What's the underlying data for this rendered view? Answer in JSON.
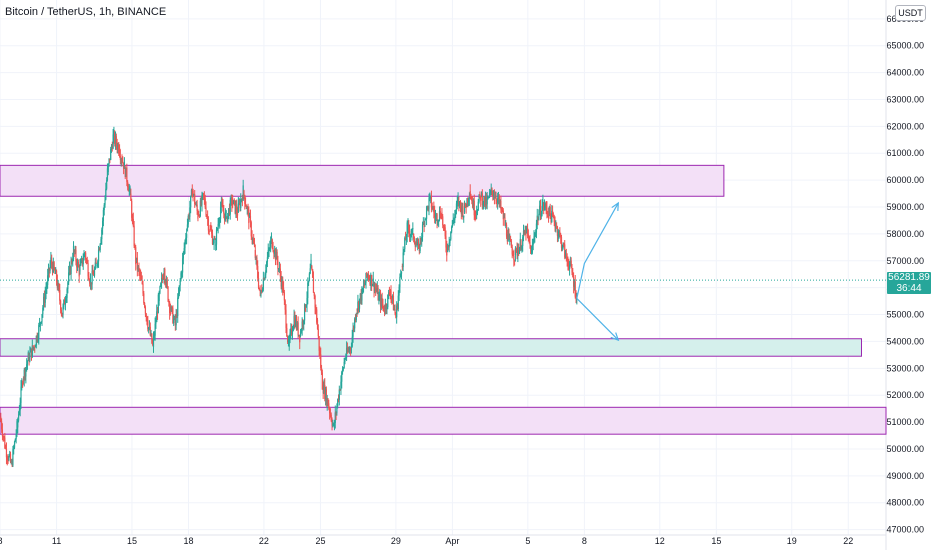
{
  "header": {
    "title": "Bitcoin / TetherUS, 1h, BINANCE",
    "currency": "USDT"
  },
  "price_badge": {
    "price": "56281.89",
    "countdown": "36:44"
  },
  "colors": {
    "up": "#26a69a",
    "down": "#ef5350",
    "zone_purple_fill": "#f3e0f7",
    "zone_purple_border": "#9c27b0",
    "zone_teal_fill": "#d5f0ec",
    "arrow": "#4fb3e8",
    "grid": "#f0f3fa"
  },
  "chart_data": {
    "type": "candlestick",
    "title": "Bitcoin / TetherUS, 1h, BINANCE",
    "y_axis": {
      "ticks": [
        "47000.00",
        "48000.00",
        "49000.00",
        "50000.00",
        "51000.00",
        "52000.00",
        "53000.00",
        "54000.00",
        "55000.00",
        "56000.00",
        "57000.00",
        "58000.00",
        "59000.00",
        "60000.00",
        "61000.00",
        "62000.00",
        "63000.00",
        "64000.00",
        "65000.00",
        "66000.00"
      ],
      "tick_values": [
        47000,
        48000,
        49000,
        50000,
        51000,
        52000,
        53000,
        54000,
        55000,
        56000,
        57000,
        58000,
        59000,
        60000,
        61000,
        62000,
        63000,
        64000,
        65000,
        66000
      ],
      "range": [
        46800,
        66700
      ],
      "position": "right"
    },
    "x_axis": {
      "ticks": [
        "8",
        "11",
        "15",
        "18",
        "22",
        "25",
        "29",
        "Apr",
        "5",
        "8",
        "12",
        "15",
        "19",
        "22"
      ],
      "tick_days": [
        8,
        11,
        15,
        18,
        22,
        25,
        29,
        32,
        36,
        39,
        43,
        46,
        50,
        53
      ],
      "range_days": [
        8,
        55
      ]
    },
    "price_path": [
      [
        8.0,
        51200
      ],
      [
        8.3,
        50000
      ],
      [
        8.6,
        49400
      ],
      [
        8.9,
        50800
      ],
      [
        9.2,
        52600
      ],
      [
        9.5,
        53400
      ],
      [
        9.8,
        53800
      ],
      [
        10.1,
        54600
      ],
      [
        10.4,
        55800
      ],
      [
        10.7,
        57000
      ],
      [
        11.0,
        56300
      ],
      [
        11.3,
        55000
      ],
      [
        11.6,
        56200
      ],
      [
        11.9,
        57400
      ],
      [
        12.2,
        56600
      ],
      [
        12.5,
        57300
      ],
      [
        12.8,
        56200
      ],
      [
        13.1,
        56800
      ],
      [
        13.4,
        58200
      ],
      [
        13.7,
        60300
      ],
      [
        14.0,
        61600
      ],
      [
        14.3,
        61200
      ],
      [
        14.6,
        60500
      ],
      [
        14.9,
        59500
      ],
      [
        15.2,
        57000
      ],
      [
        15.5,
        56200
      ],
      [
        15.8,
        54800
      ],
      [
        16.1,
        53800
      ],
      [
        16.4,
        55500
      ],
      [
        16.7,
        56700
      ],
      [
        17.0,
        55300
      ],
      [
        17.3,
        54600
      ],
      [
        17.6,
        56500
      ],
      [
        17.9,
        58200
      ],
      [
        18.2,
        59600
      ],
      [
        18.5,
        58700
      ],
      [
        18.8,
        59400
      ],
      [
        19.1,
        58200
      ],
      [
        19.4,
        57600
      ],
      [
        19.7,
        59000
      ],
      [
        20.0,
        58600
      ],
      [
        20.3,
        59200
      ],
      [
        20.6,
        58800
      ],
      [
        20.9,
        59600
      ],
      [
        21.2,
        58600
      ],
      [
        21.5,
        57400
      ],
      [
        21.8,
        55700
      ],
      [
        22.1,
        56800
      ],
      [
        22.4,
        57800
      ],
      [
        22.7,
        57000
      ],
      [
        23.0,
        56000
      ],
      [
        23.3,
        53800
      ],
      [
        23.6,
        54900
      ],
      [
        23.9,
        54200
      ],
      [
        24.2,
        55300
      ],
      [
        24.5,
        56800
      ],
      [
        24.8,
        54800
      ],
      [
        25.1,
        52400
      ],
      [
        25.4,
        51700
      ],
      [
        25.7,
        50800
      ],
      [
        26.0,
        52200
      ],
      [
        26.3,
        53400
      ],
      [
        26.6,
        53800
      ],
      [
        26.9,
        55200
      ],
      [
        27.2,
        55800
      ],
      [
        27.5,
        56500
      ],
      [
        27.8,
        56200
      ],
      [
        28.1,
        55600
      ],
      [
        28.4,
        55200
      ],
      [
        28.7,
        55900
      ],
      [
        29.0,
        54900
      ],
      [
        29.3,
        56800
      ],
      [
        29.6,
        58200
      ],
      [
        29.9,
        58000
      ],
      [
        30.2,
        57400
      ],
      [
        30.5,
        58500
      ],
      [
        30.8,
        59300
      ],
      [
        31.1,
        58600
      ],
      [
        31.4,
        58800
      ],
      [
        31.7,
        57400
      ],
      [
        32.0,
        58400
      ],
      [
        32.3,
        59200
      ],
      [
        32.6,
        58800
      ],
      [
        32.9,
        59600
      ],
      [
        33.2,
        58800
      ],
      [
        33.5,
        59400
      ],
      [
        33.8,
        59100
      ],
      [
        34.1,
        59600
      ],
      [
        34.4,
        59300
      ],
      [
        34.7,
        58600
      ],
      [
        35.0,
        57700
      ],
      [
        35.3,
        57200
      ],
      [
        35.6,
        57600
      ],
      [
        35.9,
        58100
      ],
      [
        36.2,
        57300
      ],
      [
        36.5,
        58600
      ],
      [
        36.8,
        59100
      ],
      [
        37.1,
        58800
      ],
      [
        37.4,
        58500
      ],
      [
        37.7,
        57900
      ],
      [
        38.0,
        57200
      ],
      [
        38.3,
        56700
      ],
      [
        38.6,
        55600
      ]
    ],
    "zones": [
      {
        "name": "resistance-zone",
        "start_day": 8.0,
        "end_day": 46.4,
        "low": 59400,
        "high": 60550,
        "kind": "purple"
      },
      {
        "name": "support-zone",
        "start_day": 8.0,
        "end_day": 53.7,
        "low": 53450,
        "high": 54100,
        "kind": "teal"
      },
      {
        "name": "lower-support-zone",
        "start_day": 8.0,
        "end_day": 55.0,
        "low": 50550,
        "high": 51550,
        "kind": "purple"
      }
    ],
    "arrows": [
      {
        "name": "bullish-scenario-arrow",
        "from": [
          38.6,
          55600
        ],
        "via": [
          39.0,
          56900
        ],
        "to": [
          40.8,
          59150
        ]
      },
      {
        "name": "bearish-scenario-arrow",
        "from": [
          38.6,
          55600
        ],
        "to": [
          40.8,
          54050
        ]
      }
    ],
    "last_price": 56281.89,
    "grid": true
  }
}
